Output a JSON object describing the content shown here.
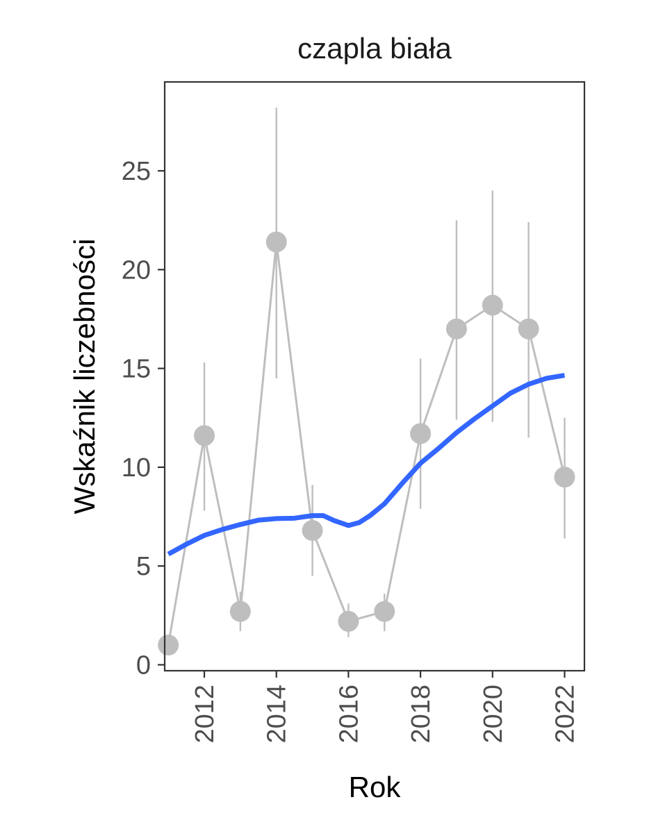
{
  "chart_data": {
    "type": "line",
    "title": "czapla biała",
    "xlabel": "Rok",
    "ylabel": "Wskaźnik liczebności",
    "xlim": [
      2010.9,
      2022.55
    ],
    "ylim": [
      -0.3,
      29.5
    ],
    "x_ticks": [
      2012,
      2014,
      2016,
      2018,
      2020,
      2022
    ],
    "y_ticks": [
      0,
      5,
      10,
      15,
      20,
      25
    ],
    "grid": false,
    "legend": "none",
    "series": [
      {
        "kind": "observed",
        "color": "#bebebe",
        "x": [
          2011,
          2012,
          2013,
          2014,
          2015,
          2016,
          2017,
          2018,
          2019,
          2020,
          2021,
          2022
        ],
        "y": [
          1.0,
          11.6,
          2.7,
          21.4,
          6.8,
          2.2,
          2.7,
          11.7,
          17.0,
          18.2,
          17.0,
          9.5
        ],
        "lower": [
          null,
          7.8,
          1.7,
          14.5,
          4.5,
          1.4,
          1.7,
          7.9,
          12.4,
          12.3,
          11.5,
          6.4
        ],
        "upper": [
          null,
          15.3,
          3.7,
          28.2,
          9.1,
          3.1,
          3.6,
          15.5,
          22.5,
          24.0,
          22.4,
          12.5
        ]
      },
      {
        "kind": "trend",
        "color": "#3366ff",
        "x": [
          2011,
          2011.5,
          2012,
          2012.5,
          2013,
          2013.5,
          2014,
          2014.5,
          2015,
          2015.3,
          2015.6,
          2016,
          2016.3,
          2016.6,
          2017,
          2017.5,
          2018,
          2018.5,
          2019,
          2019.5,
          2020,
          2020.5,
          2021,
          2021.5,
          2022
        ],
        "y": [
          5.6,
          6.1,
          6.55,
          6.85,
          7.1,
          7.32,
          7.4,
          7.42,
          7.55,
          7.55,
          7.3,
          7.05,
          7.2,
          7.55,
          8.15,
          9.2,
          10.2,
          10.95,
          11.75,
          12.45,
          13.1,
          13.75,
          14.2,
          14.5,
          14.65
        ]
      }
    ]
  }
}
